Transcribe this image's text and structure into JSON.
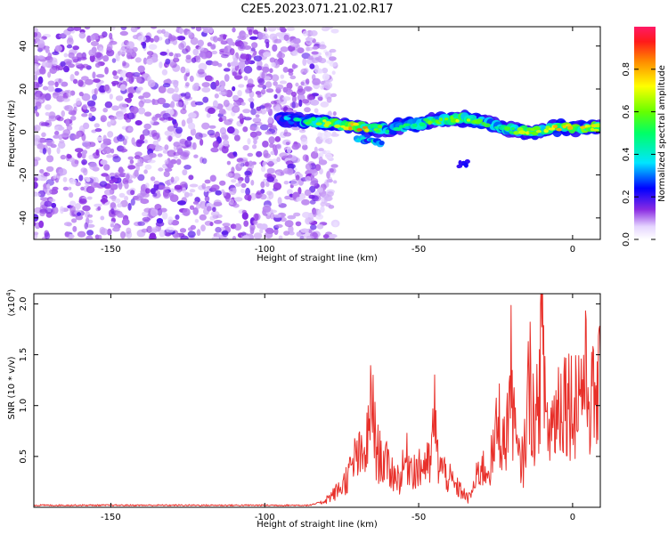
{
  "title": "C2E5.2023.071.21.02.R17",
  "chart_data": [
    {
      "type": "heatmap",
      "xlabel": "Height of straight line (km)",
      "ylabel": "Frequency (Hz)",
      "xlim": [
        -175,
        9
      ],
      "ylim": [
        -50,
        49
      ],
      "xticks": [
        "-150",
        "-100",
        "-50",
        "0"
      ],
      "yticks": [
        "-40",
        "-20",
        "0",
        "20",
        "40"
      ],
      "colorbar": {
        "label": "Normalized spectral amplitude",
        "range": [
          0,
          1
        ],
        "ticks": [
          "0.0",
          "0.2",
          "0.4",
          "0.6",
          "0.8"
        ]
      },
      "noise_region_x": [
        -175,
        -83
      ],
      "ridge": {
        "x": [
          -95,
          -85,
          -75,
          -68,
          -60,
          -55,
          -50,
          -45,
          -40,
          -35,
          -30,
          -25,
          -20,
          -15,
          -10,
          -5,
          0,
          5,
          9
        ],
        "y": [
          6,
          5,
          3,
          2,
          1,
          3,
          4,
          5,
          6,
          6,
          5,
          3,
          1,
          0,
          1,
          2,
          2,
          2,
          2
        ],
        "peak_amplitude": [
          0.35,
          0.6,
          0.85,
          0.9,
          0.5,
          0.6,
          0.55,
          0.65,
          0.7,
          0.75,
          0.6,
          0.55,
          0.6,
          0.75,
          0.7,
          0.85,
          0.9,
          0.85,
          0.8
        ]
      },
      "branch": {
        "x": [
          -70,
          -62
        ],
        "y": [
          -3,
          -5
        ]
      },
      "secondary_blob": {
        "x": -35,
        "y": -15
      }
    },
    {
      "type": "line",
      "xlabel": "Height of straight line (km)",
      "ylabel": "SNR (10 * v/v)",
      "y_multiplier": "(x10",
      "y_multiplier_exp": "4",
      "xlim": [
        -175,
        9
      ],
      "ylim": [
        0,
        2.1
      ],
      "xticks": [
        "-150",
        "-100",
        "-50",
        "0"
      ],
      "yticks": [
        "0.5",
        "1.0",
        "1.5",
        "2.0"
      ],
      "color": "#e8302a",
      "series": [
        {
          "name": "",
          "x": [
            -175,
            -160,
            -140,
            -120,
            -100,
            -85,
            -82,
            -78,
            -75,
            -72,
            -70,
            -68,
            -66,
            -65,
            -64,
            -62,
            -60,
            -58,
            -56,
            -54,
            -52,
            -50,
            -48,
            -46,
            -45,
            -44,
            -42,
            -40,
            -38,
            -36,
            -34,
            -32,
            -30,
            -28,
            -26,
            -24,
            -22,
            -20,
            -18,
            -16,
            -14,
            -12,
            -10,
            -8,
            -6,
            -4,
            -2,
            0,
            2,
            4,
            6,
            8,
            9
          ],
          "y": [
            0.02,
            0.02,
            0.02,
            0.02,
            0.02,
            0.02,
            0.05,
            0.15,
            0.25,
            0.45,
            0.65,
            0.55,
            0.95,
            1.45,
            0.7,
            0.6,
            0.5,
            0.4,
            0.35,
            0.6,
            0.5,
            0.45,
            0.55,
            0.5,
            1.25,
            0.6,
            0.45,
            0.35,
            0.25,
            0.2,
            0.1,
            0.25,
            0.5,
            0.45,
            0.6,
            1.1,
            0.7,
            1.6,
            0.6,
            0.55,
            1.6,
            0.9,
            2.07,
            0.9,
            1.1,
            1.35,
            1.4,
            1.25,
            1.45,
            1.6,
            1.3,
            1.35,
            1.45
          ]
        }
      ]
    }
  ]
}
